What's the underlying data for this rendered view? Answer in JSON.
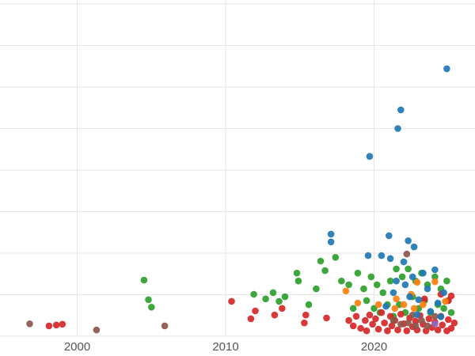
{
  "chart_data": {
    "type": "scatter",
    "title": "",
    "xlabel": "",
    "ylabel": "",
    "grid": true,
    "legend": "none",
    "xlim": [
      1994.8,
      2026.8
    ],
    "ylim": [
      0,
      8
    ],
    "x_ticks": {
      "values": [
        2000,
        2010,
        2020
      ],
      "labels": [
        "2000",
        "2010",
        "2020"
      ]
    },
    "y_gridline_values": [
      0,
      1,
      2,
      3,
      4,
      5,
      6,
      7,
      8
    ],
    "colors": {
      "grid": "#e6e6e6",
      "tick_label": "#555555",
      "background": "#ffffff"
    },
    "marker": {
      "shape": "circle",
      "radius_px": 4.3,
      "opacity": 0.92
    },
    "series": [
      {
        "name": "green",
        "color": "#2ca02c",
        "points": [
          [
            2004.5,
            1.35
          ],
          [
            2004.8,
            0.88
          ],
          [
            2005.0,
            0.7
          ],
          [
            2011.9,
            1.01
          ],
          [
            2012.7,
            0.9
          ],
          [
            2013.2,
            1.05
          ],
          [
            2013.6,
            0.84
          ],
          [
            2014.0,
            0.95
          ],
          [
            2014.8,
            1.52
          ],
          [
            2014.9,
            1.33
          ],
          [
            2015.6,
            0.76
          ],
          [
            2016.1,
            1.14
          ],
          [
            2016.4,
            1.81
          ],
          [
            2016.7,
            1.58
          ],
          [
            2017.4,
            1.9
          ],
          [
            2017.8,
            1.33
          ],
          [
            2018.3,
            1.24
          ],
          [
            2018.6,
            0.67
          ],
          [
            2018.9,
            1.52
          ],
          [
            2019.3,
            1.14
          ],
          [
            2019.5,
            0.86
          ],
          [
            2019.8,
            1.43
          ],
          [
            2020.0,
            0.67
          ],
          [
            2020.2,
            1.24
          ],
          [
            2020.4,
            0.57
          ],
          [
            2020.6,
            1.05
          ],
          [
            2020.9,
            0.76
          ],
          [
            2021.1,
            1.33
          ],
          [
            2021.3,
            0.48
          ],
          [
            2021.5,
            1.62
          ],
          [
            2021.7,
            0.76
          ],
          [
            2021.9,
            1.43
          ],
          [
            2022.1,
            0.57
          ],
          [
            2022.3,
            1.62
          ],
          [
            2022.6,
            0.95
          ],
          [
            2022.8,
            1.33
          ],
          [
            2023.0,
            0.67
          ],
          [
            2023.2,
            1.52
          ],
          [
            2023.4,
            0.86
          ],
          [
            2023.6,
            1.24
          ],
          [
            2023.8,
            0.57
          ],
          [
            2024.1,
            1.43
          ],
          [
            2024.3,
            0.76
          ],
          [
            2024.5,
            1.14
          ],
          [
            2024.7,
            0.67
          ],
          [
            2024.9,
            1.33
          ],
          [
            2025.0,
            0.86
          ],
          [
            2025.2,
            0.57
          ]
        ]
      },
      {
        "name": "red",
        "color": "#d62728",
        "points": [
          [
            1998.1,
            0.25
          ],
          [
            1998.6,
            0.27
          ],
          [
            1999.0,
            0.29
          ],
          [
            2010.4,
            0.84
          ],
          [
            2011.7,
            0.42
          ],
          [
            2012.0,
            0.61
          ],
          [
            2013.3,
            0.51
          ],
          [
            2013.8,
            0.67
          ],
          [
            2015.3,
            0.32
          ],
          [
            2015.4,
            0.51
          ],
          [
            2016.8,
            0.44
          ],
          [
            2018.3,
            0.38
          ],
          [
            2018.6,
            0.25
          ],
          [
            2018.8,
            0.48
          ],
          [
            2019.1,
            0.19
          ],
          [
            2019.4,
            0.38
          ],
          [
            2019.5,
            0.13
          ],
          [
            2019.7,
            0.51
          ],
          [
            2019.9,
            0.29
          ],
          [
            2020.1,
            0.42
          ],
          [
            2020.3,
            0.17
          ],
          [
            2020.5,
            0.57
          ],
          [
            2020.7,
            0.32
          ],
          [
            2020.9,
            0.13
          ],
          [
            2021.1,
            0.48
          ],
          [
            2021.2,
            0.25
          ],
          [
            2021.4,
            0.38
          ],
          [
            2021.6,
            0.15
          ],
          [
            2021.8,
            0.53
          ],
          [
            2022.0,
            0.3
          ],
          [
            2022.2,
            0.13
          ],
          [
            2022.4,
            0.44
          ],
          [
            2022.6,
            0.23
          ],
          [
            2022.8,
            0.36
          ],
          [
            2022.9,
            0.15
          ],
          [
            2023.1,
            0.5
          ],
          [
            2023.3,
            0.29
          ],
          [
            2023.5,
            0.13
          ],
          [
            2023.7,
            0.42
          ],
          [
            2023.9,
            0.21
          ],
          [
            2024.1,
            0.34
          ],
          [
            2024.3,
            0.15
          ],
          [
            2024.5,
            0.48
          ],
          [
            2024.6,
            0.27
          ],
          [
            2024.9,
            0.13
          ],
          [
            2025.0,
            0.4
          ],
          [
            2025.2,
            0.19
          ],
          [
            2025.4,
            0.32
          ],
          [
            2023.4,
            0.9
          ],
          [
            2024.5,
            1.01
          ],
          [
            2025.0,
            0.86
          ],
          [
            2025.2,
            0.97
          ]
        ]
      },
      {
        "name": "orange",
        "color": "#ff7f0e",
        "points": [
          [
            2018.1,
            1.09
          ],
          [
            2018.9,
            0.8
          ],
          [
            2021.5,
            0.9
          ],
          [
            2022.5,
            1.01
          ],
          [
            2022.9,
            1.3
          ],
          [
            2024.1,
            1.31
          ],
          [
            2024.8,
            0.84
          ],
          [
            2022.0,
            0.76
          ],
          [
            2021.4,
            0.67
          ],
          [
            2020.3,
            0.76
          ],
          [
            2022.7,
            0.67
          ],
          [
            2023.3,
            0.76
          ]
        ]
      },
      {
        "name": "brown",
        "color": "#8c564b",
        "points": [
          [
            1996.8,
            0.3
          ],
          [
            2001.3,
            0.15
          ],
          [
            2005.9,
            0.25
          ],
          [
            2022.2,
            1.98
          ],
          [
            2021.3,
            0.38
          ],
          [
            2021.8,
            0.29
          ],
          [
            2022.3,
            0.32
          ],
          [
            2022.8,
            0.25
          ],
          [
            2023.2,
            0.38
          ],
          [
            2023.6,
            0.25
          ],
          [
            2024.1,
            0.48
          ],
          [
            2022.6,
            0.51
          ]
        ]
      },
      {
        "name": "purple",
        "color": "#9467bd",
        "points": [
          [
            2024.1,
            0.3
          ]
        ]
      },
      {
        "name": "blue",
        "color": "#1f77b4",
        "points": [
          [
            2024.9,
            6.44
          ],
          [
            2021.8,
            5.45
          ],
          [
            2021.6,
            5.0
          ],
          [
            2019.7,
            4.33
          ],
          [
            2017.1,
            2.46
          ],
          [
            2017.1,
            2.27
          ],
          [
            2021.0,
            2.42
          ],
          [
            2022.3,
            2.3
          ],
          [
            2022.7,
            2.15
          ],
          [
            2019.6,
            1.94
          ],
          [
            2020.5,
            1.94
          ],
          [
            2021.1,
            1.87
          ],
          [
            2022.0,
            1.79
          ],
          [
            2023.3,
            1.52
          ],
          [
            2024.1,
            1.6
          ],
          [
            2022.6,
            1.43
          ],
          [
            2021.5,
            1.33
          ],
          [
            2022.1,
            1.24
          ],
          [
            2023.6,
            1.14
          ],
          [
            2024.7,
            1.05
          ],
          [
            2021.3,
            1.05
          ],
          [
            2022.4,
            0.95
          ],
          [
            2023.0,
            0.88
          ],
          [
            2024.3,
            0.8
          ],
          [
            2020.8,
            0.72
          ],
          [
            2023.8,
            0.6
          ],
          [
            2022.9,
            0.52
          ],
          [
            2024.5,
            0.47
          ]
        ]
      }
    ]
  }
}
